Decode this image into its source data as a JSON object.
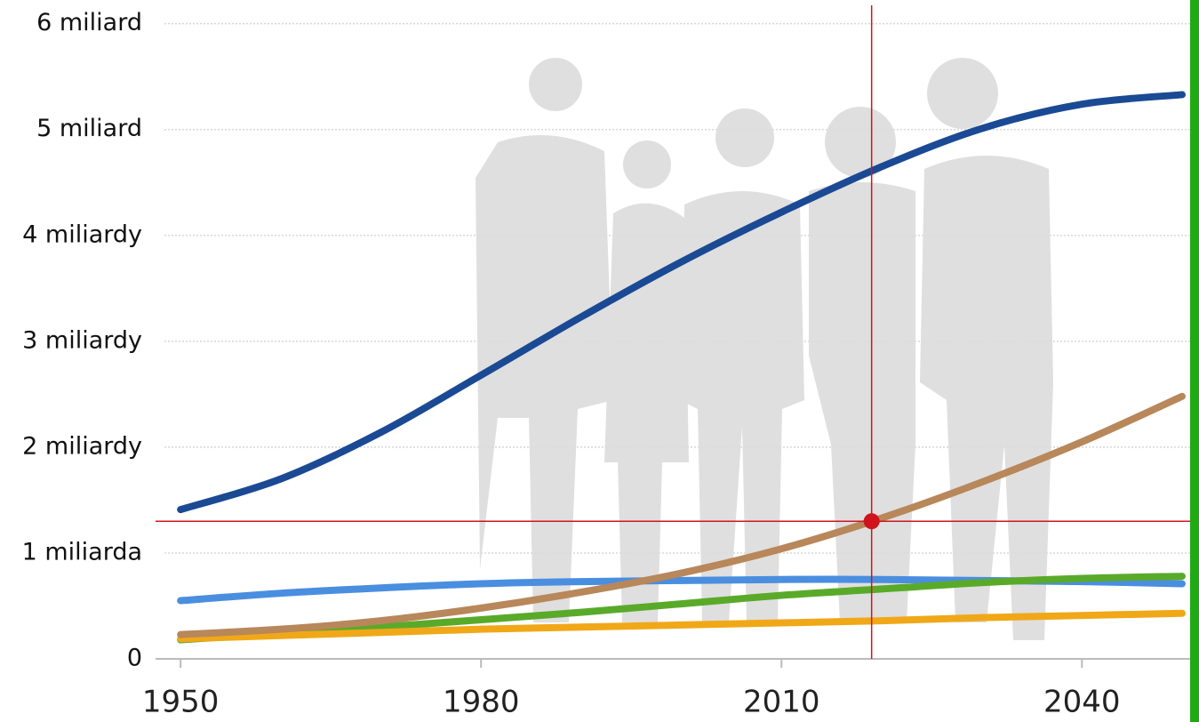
{
  "chart_data": {
    "type": "line",
    "x": [
      1950,
      1960,
      1970,
      1980,
      1990,
      2000,
      2010,
      2020,
      2030,
      2040,
      2050
    ],
    "series": [
      {
        "color": "#1b4a94",
        "values": [
          1.41,
          1.7,
          2.14,
          2.68,
          3.23,
          3.75,
          4.22,
          4.65,
          5.01,
          5.24,
          5.33
        ]
      },
      {
        "color": "#4a8ee0",
        "values": [
          0.55,
          0.62,
          0.67,
          0.71,
          0.73,
          0.74,
          0.75,
          0.75,
          0.74,
          0.73,
          0.71
        ]
      },
      {
        "color": "#5aaa2a",
        "values": [
          0.18,
          0.24,
          0.3,
          0.37,
          0.44,
          0.52,
          0.6,
          0.66,
          0.72,
          0.76,
          0.78
        ]
      },
      {
        "color": "#f0a818",
        "values": [
          0.19,
          0.22,
          0.25,
          0.28,
          0.3,
          0.32,
          0.34,
          0.36,
          0.39,
          0.41,
          0.43
        ]
      },
      {
        "color": "#b8875a",
        "values": [
          0.23,
          0.28,
          0.36,
          0.48,
          0.63,
          0.81,
          1.04,
          1.33,
          1.67,
          2.05,
          2.48
        ]
      }
    ],
    "xlim": [
      1947.5,
      2050.8
    ],
    "xticks": [
      1950,
      1980,
      2010,
      2040
    ],
    "ylim": [
      0,
      6.14
    ],
    "yticks": [
      0,
      {
        "value": 1,
        "label": "1 miliarda"
      },
      {
        "value": 2,
        "label": "2 miliardy"
      },
      {
        "value": 3,
        "label": "3 miliardy"
      },
      {
        "value": 4,
        "label": "4 miliardy"
      },
      {
        "value": 5,
        "label": "5 miliard"
      },
      {
        "value": 6,
        "label": "6 miliard"
      }
    ],
    "grid": true,
    "crosshair": {
      "x": 2019,
      "y": 1.3,
      "color": "#d0141e"
    }
  }
}
